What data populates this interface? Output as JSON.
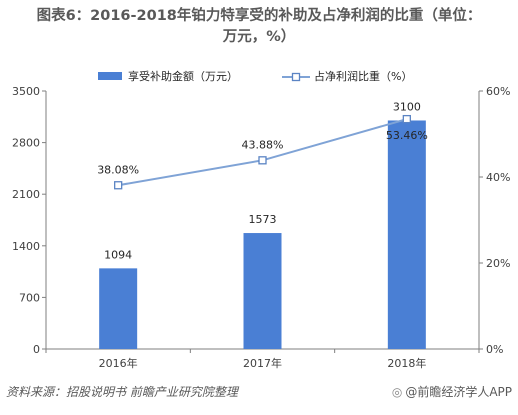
{
  "title_line1": "图表6：2016-2018年铂力特享受的补助及占净利润的比重（单位：",
  "title_line2": "万元，%）",
  "footer": {
    "source": "资料来源：招股说明书 前瞻产业研究院整理",
    "brand": "@前瞻经济学人APP"
  },
  "chart_data": {
    "type": "bar+line",
    "categories": [
      "2016年",
      "2017年",
      "2018年"
    ],
    "series": [
      {
        "name": "享受补助金额（万元）",
        "type": "bar",
        "axis": "left",
        "color": "#4a7fd4",
        "values": [
          1094,
          1573,
          3100
        ],
        "labels": [
          "1094",
          "1573",
          "3100"
        ]
      },
      {
        "name": "占净利润比重（%）",
        "type": "line",
        "axis": "right",
        "color": "#7fa3d6",
        "values": [
          38.08,
          43.88,
          53.46
        ],
        "labels": [
          "38.08%",
          "43.88%",
          "53.46%"
        ]
      }
    ],
    "y_left": {
      "min": 0,
      "max": 3500,
      "ticks": [
        "0",
        "700",
        "1400",
        "2100",
        "2800",
        "3500"
      ]
    },
    "y_right": {
      "min": 0,
      "max": 60,
      "ticks": [
        "0%",
        "20%",
        "40%",
        "60%"
      ]
    },
    "legend_position": "top",
    "grid": false
  }
}
